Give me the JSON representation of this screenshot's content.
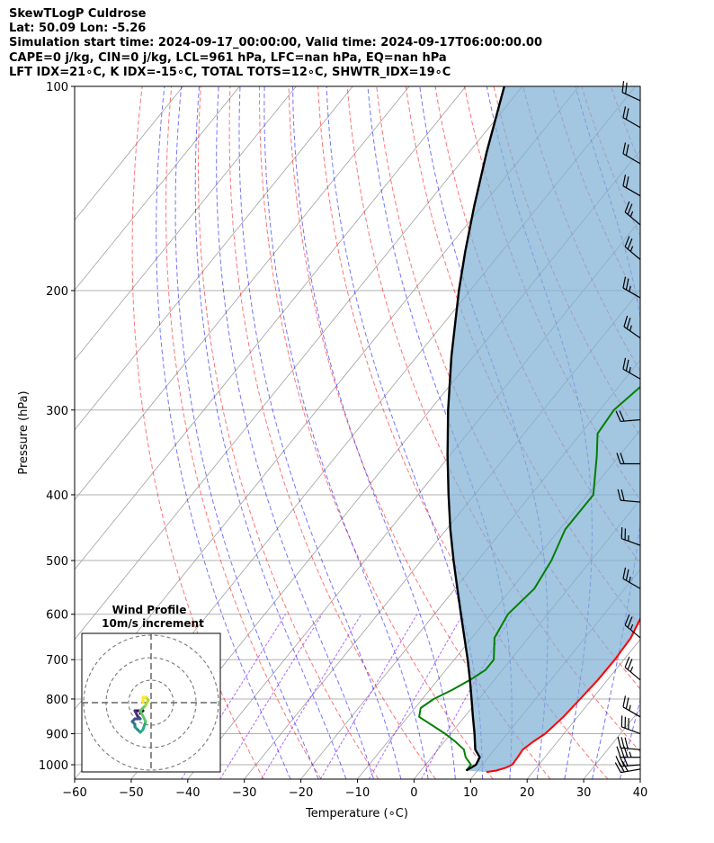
{
  "header": {
    "line1": "SkewTLogP Culdrose",
    "line2": "Lat: 50.09   Lon: -5.26",
    "line3": "Simulation start time: 2024-09-17_00:00:00, Valid time: 2024-09-17T06:00:00.00",
    "line4": "CAPE=0 j/kg, CIN=0 j/kg, LCL=961 hPa, LFC=nan hPa, EQ=nan hPa",
    "line5": "LFT IDX=21∘C, K IDX=-15∘C, TOTAL TOTS=12∘C, SHWTR_IDX=19∘C"
  },
  "colors": {
    "temperature": "#ff0000",
    "dewpoint": "#008000",
    "parcel": "#000000",
    "cin_fill": "#7fb0d6",
    "dry_adiabat": "#ff0000",
    "moist_adiabat": "#0000ff",
    "mixing_ratio": "#7f00ff",
    "isotherm": "#a0a0a0",
    "isobar": "#b0b0b0"
  },
  "chart_data": {
    "type": "line",
    "title": "SkewTLogP Culdrose",
    "xlabel": "Temperature (∘C)",
    "ylabel": "Pressure (hPa)",
    "xlim": [
      -60,
      40
    ],
    "ylim": [
      1050,
      100
    ],
    "y_scale": "log",
    "grid": true,
    "x_ticks": [
      -60,
      -50,
      -40,
      -30,
      -20,
      -10,
      0,
      10,
      20,
      30,
      40
    ],
    "x_tick_labels": [
      "−60",
      "−50",
      "−40",
      "−30",
      "−20",
      "−10",
      "0",
      "10",
      "20",
      "30",
      "40"
    ],
    "y_ticks": [
      1000,
      900,
      800,
      700,
      600,
      500,
      400,
      300,
      200,
      100
    ],
    "y_tick_labels": [
      "1000",
      "900",
      "800",
      "700",
      "600",
      "500",
      "400",
      "300",
      "200",
      "100"
    ],
    "series": [
      {
        "name": "",
        "key": "temperature",
        "points": [
          [
            1025,
            11.8
          ],
          [
            1020,
            13.3
          ],
          [
            1010,
            14.6
          ],
          [
            1000,
            15.3
          ],
          [
            975,
            15.2
          ],
          [
            950,
            15.0
          ],
          [
            925,
            15.7
          ],
          [
            900,
            16.7
          ],
          [
            850,
            17.5
          ],
          [
            800,
            17.9
          ],
          [
            750,
            18.3
          ],
          [
            700,
            18.4
          ],
          [
            650,
            18.1
          ],
          [
            600,
            16.8
          ],
          [
            550,
            14.8
          ],
          [
            500,
            12.2
          ],
          [
            450,
            9.2
          ],
          [
            400,
            5.3
          ],
          [
            350,
            1.1
          ],
          [
            300,
            -3.0
          ],
          [
            250,
            -7.2
          ],
          [
            225,
            -10.4
          ],
          [
            200,
            -13.8
          ],
          [
            175,
            -17.8
          ],
          [
            150,
            -21.5
          ],
          [
            140,
            -23.0
          ],
          [
            130,
            -21.0
          ],
          [
            120,
            -19.0
          ],
          [
            110,
            -16.0
          ],
          [
            100,
            -13.0
          ]
        ]
      },
      {
        "name": "",
        "key": "dewpoint",
        "points": [
          [
            1020,
            8.0
          ],
          [
            1000,
            8.0
          ],
          [
            975,
            6.0
          ],
          [
            950,
            4.6
          ],
          [
            925,
            2.0
          ],
          [
            900,
            -1.0
          ],
          [
            850,
            -8.0
          ],
          [
            825,
            -9.0
          ],
          [
            800,
            -8.0
          ],
          [
            775,
            -6.0
          ],
          [
            750,
            -4.3
          ],
          [
            725,
            -3.0
          ],
          [
            700,
            -3.0
          ],
          [
            650,
            -6.0
          ],
          [
            600,
            -7.0
          ],
          [
            550,
            -6.0
          ],
          [
            500,
            -7.0
          ],
          [
            450,
            -9.0
          ],
          [
            400,
            -9.0
          ],
          [
            350,
            -14.0
          ],
          [
            325,
            -17.0
          ],
          [
            300,
            -17.5
          ],
          [
            275,
            -16.0
          ],
          [
            250,
            -20.0
          ],
          [
            235,
            -21.0
          ],
          [
            200,
            -26.0
          ],
          [
            175,
            -29.0
          ],
          [
            150,
            -33.0
          ],
          [
            135,
            -35.0
          ],
          [
            120,
            -35.0
          ],
          [
            110,
            -36.0
          ],
          [
            100,
            -37.0
          ]
        ]
      },
      {
        "name": "",
        "key": "parcel",
        "points": [
          [
            1020,
            8.0
          ],
          [
            1000,
            8.9
          ],
          [
            975,
            8.5
          ],
          [
            950,
            6.6
          ],
          [
            900,
            4.2
          ],
          [
            850,
            1.5
          ],
          [
            800,
            -1.3
          ],
          [
            750,
            -4.3
          ],
          [
            700,
            -7.6
          ],
          [
            650,
            -11.3
          ],
          [
            600,
            -15.3
          ],
          [
            550,
            -19.6
          ],
          [
            500,
            -24.3
          ],
          [
            450,
            -29.3
          ],
          [
            400,
            -34.6
          ],
          [
            350,
            -40.4
          ],
          [
            300,
            -46.8
          ],
          [
            250,
            -53.9
          ],
          [
            200,
            -62.0
          ],
          [
            175,
            -66.5
          ],
          [
            150,
            -71.4
          ],
          [
            125,
            -76.9
          ],
          [
            100,
            -83.2
          ]
        ]
      }
    ],
    "annotations": {
      "cape_j_kg": 0,
      "cin_j_kg": 0,
      "lcl_hpa": 961,
      "lfc_hpa": "nan",
      "eq_hpa": "nan",
      "lifted_index_c": 21,
      "k_index_c": -15,
      "total_totals_c": 12,
      "showalter_index_c": 19
    },
    "wind_barbs": [
      {
        "p": 1015,
        "speed_kt": 30,
        "dir_deg": 260
      },
      {
        "p": 1000,
        "speed_kt": 30,
        "dir_deg": 265
      },
      {
        "p": 975,
        "speed_kt": 35,
        "dir_deg": 270
      },
      {
        "p": 950,
        "speed_kt": 30,
        "dir_deg": 275
      },
      {
        "p": 900,
        "speed_kt": 30,
        "dir_deg": 290
      },
      {
        "p": 850,
        "speed_kt": 25,
        "dir_deg": 300
      },
      {
        "p": 750,
        "speed_kt": 25,
        "dir_deg": 310
      },
      {
        "p": 650,
        "speed_kt": 25,
        "dir_deg": 310
      },
      {
        "p": 550,
        "speed_kt": 25,
        "dir_deg": 300
      },
      {
        "p": 475,
        "speed_kt": 25,
        "dir_deg": 290
      },
      {
        "p": 410,
        "speed_kt": 20,
        "dir_deg": 275
      },
      {
        "p": 360,
        "speed_kt": 20,
        "dir_deg": 270
      },
      {
        "p": 310,
        "speed_kt": 20,
        "dir_deg": 265
      },
      {
        "p": 270,
        "speed_kt": 25,
        "dir_deg": 300
      },
      {
        "p": 235,
        "speed_kt": 25,
        "dir_deg": 305
      },
      {
        "p": 205,
        "speed_kt": 25,
        "dir_deg": 300
      },
      {
        "p": 180,
        "speed_kt": 25,
        "dir_deg": 310
      },
      {
        "p": 160,
        "speed_kt": 25,
        "dir_deg": 310
      },
      {
        "p": 145,
        "speed_kt": 20,
        "dir_deg": 300
      },
      {
        "p": 130,
        "speed_kt": 20,
        "dir_deg": 300
      },
      {
        "p": 115,
        "speed_kt": 20,
        "dir_deg": 300
      },
      {
        "p": 105,
        "speed_kt": 20,
        "dir_deg": 295
      }
    ],
    "hodograph": {
      "title": "Wind Profile",
      "subtitle": "10m/s increment",
      "ring_step_ms": 10,
      "rings": 3,
      "u_ms": [
        -4,
        -3,
        -5,
        -6,
        -5,
        -4,
        -6,
        -7,
        -6,
        -6,
        -5,
        -4,
        -3,
        -2,
        -4,
        -2,
        -1,
        -2,
        -3,
        -3
      ],
      "v_ms": [
        -4,
        -3,
        -3,
        -3,
        -5,
        -6,
        -6,
        -7,
        -8,
        -9,
        -10,
        -11,
        -10,
        -7,
        -3,
        -1,
        1,
        2,
        2,
        0
      ]
    }
  }
}
